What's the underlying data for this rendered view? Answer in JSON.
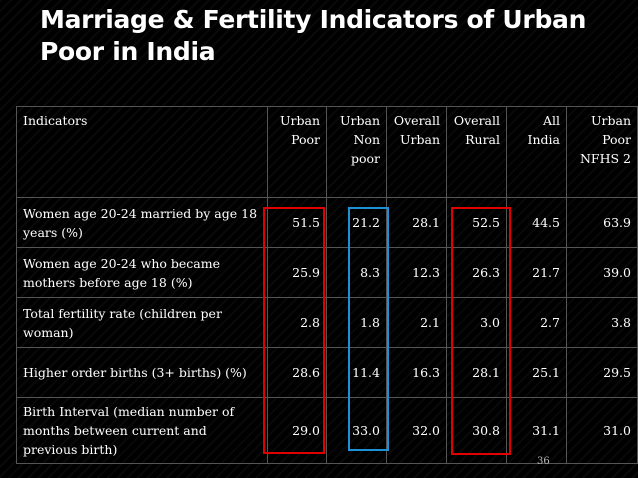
{
  "title": "Marriage & Fertility Indicators of Urban Poor in India",
  "table": {
    "headers": [
      [
        "Indicators"
      ],
      [
        "Urban",
        "Poor"
      ],
      [
        "Urban",
        "Non",
        "poor"
      ],
      [
        "Overall",
        "Urban"
      ],
      [
        "Overall",
        "Rural"
      ],
      [
        "All",
        "India"
      ],
      [
        "Urban",
        "Poor",
        "NFHS 2"
      ]
    ],
    "rows": [
      [
        "Women age 20-24 married by age 18 years (%)",
        "51.5",
        "21.2",
        "28.1",
        "52.5",
        "44.5",
        "63.9"
      ],
      [
        "Women age 20-24 who became mothers before age 18 (%)",
        "25.9",
        "8.3",
        "12.3",
        "26.3",
        "21.7",
        "39.0"
      ],
      [
        "Total fertility rate (children per woman)",
        "2.8",
        "1.8",
        "2.1",
        "3.0",
        "2.7",
        "3.8"
      ],
      [
        "Higher order births (3+ births) (%)",
        "28.6",
        "11.4",
        "16.3",
        "28.1",
        "25.1",
        "29.5"
      ],
      [
        "Birth Interval (median number of months between current and previous birth)",
        "29.0",
        "33.0",
        "32.0",
        "30.8",
        "31.1",
        "31.0"
      ]
    ]
  },
  "highlights": {
    "urban_poor_color": "#e00000",
    "urban_nonpoor_color": "#1e90d6",
    "overall_rural_color": "#e00000"
  },
  "slide_number": "36"
}
